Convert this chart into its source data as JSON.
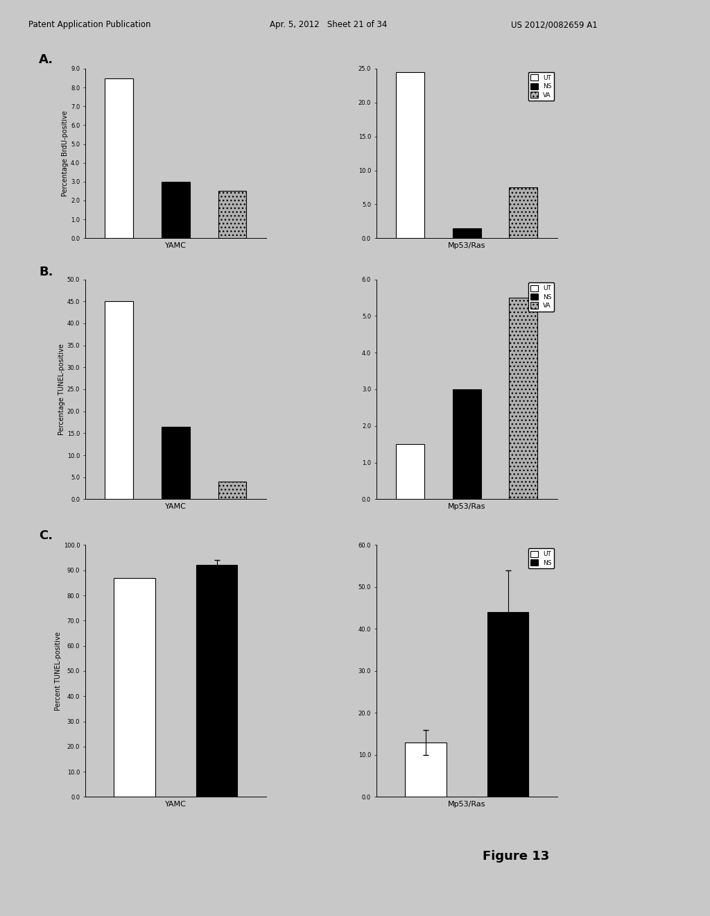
{
  "panel_A": {
    "title_label": "A.",
    "ylabel": "Percentage BrdU-positive",
    "categories": [
      "UT",
      "NS",
      "VA"
    ],
    "colors_YAMC": [
      "white",
      "black",
      "#b0b0b0"
    ],
    "colors_Mp53Ras": [
      "white",
      "black",
      "#b0b0b0"
    ],
    "hatch_YAMC": [
      "",
      "...",
      "..."
    ],
    "hatch_Mp53Ras": [
      "",
      "...",
      "..."
    ],
    "values_YAMC": [
      8.5,
      3.0,
      2.5
    ],
    "values_Mp53Ras": [
      24.5,
      1.5,
      7.5
    ],
    "ylim_YAMC": [
      0,
      9.0
    ],
    "ylim_Mp53Ras": [
      0,
      25.0
    ],
    "yticks_YAMC": [
      0.0,
      1.0,
      2.0,
      3.0,
      4.0,
      5.0,
      6.0,
      7.0,
      8.0,
      9.0
    ],
    "yticks_Mp53Ras": [
      0.0,
      5.0,
      10.0,
      15.0,
      20.0,
      25.0
    ],
    "legend_labels": [
      "UT",
      "NS",
      "VA"
    ]
  },
  "panel_B": {
    "title_label": "B.",
    "ylabel": "Percentage TUNEL-positive",
    "categories": [
      "UT",
      "NS",
      "VA"
    ],
    "colors_YAMC": [
      "white",
      "black",
      "#b0b0b0"
    ],
    "colors_Mp53Ras": [
      "white",
      "black",
      "#b0b0b0"
    ],
    "hatch_YAMC": [
      "",
      "...",
      "..."
    ],
    "hatch_Mp53Ras": [
      "",
      "...",
      "..."
    ],
    "values_YAMC": [
      45.0,
      16.5,
      4.0
    ],
    "values_Mp53Ras": [
      1.5,
      3.0,
      5.5
    ],
    "ylim_YAMC": [
      0,
      50.0
    ],
    "ylim_Mp53Ras": [
      0,
      6.0
    ],
    "yticks_YAMC": [
      0.0,
      5.0,
      10.0,
      15.0,
      20.0,
      25.0,
      30.0,
      35.0,
      40.0,
      45.0,
      50.0
    ],
    "yticks_Mp53Ras": [
      0.0,
      1.0,
      2.0,
      3.0,
      4.0,
      5.0,
      6.0
    ],
    "legend_labels": [
      "UT",
      "NS",
      "VA"
    ]
  },
  "panel_C": {
    "title_label": "C.",
    "ylabel": "Percent TUNEL-positive",
    "categories": [
      "UT",
      "NS"
    ],
    "colors_YAMC": [
      "white",
      "black"
    ],
    "colors_Mp53Ras": [
      "white",
      "black"
    ],
    "hatch_YAMC": [
      "",
      "..."
    ],
    "hatch_Mp53Ras": [
      "",
      "..."
    ],
    "values_YAMC": [
      87.0,
      92.0
    ],
    "values_Mp53Ras": [
      13.0,
      44.0
    ],
    "errors_YAMC": [
      0.0,
      2.0
    ],
    "errors_Mp53Ras": [
      3.0,
      10.0
    ],
    "ylim_YAMC": [
      0,
      100.0
    ],
    "ylim_Mp53Ras": [
      0,
      60.0
    ],
    "yticks_YAMC": [
      0.0,
      10.0,
      20.0,
      30.0,
      40.0,
      50.0,
      60.0,
      70.0,
      80.0,
      90.0,
      100.0
    ],
    "yticks_Mp53Ras": [
      0.0,
      10.0,
      20.0,
      30.0,
      40.0,
      50.0,
      60.0
    ],
    "legend_labels": [
      "UT",
      "NS"
    ]
  },
  "header_left": "Patent Application Publication",
  "header_mid": "Apr. 5, 2012   Sheet 21 of 34",
  "header_right": "US 2012/0082659 A1",
  "figure_label": "Figure 13",
  "background_color": "#c8c8c8",
  "plot_bg": "#c8c8c8"
}
